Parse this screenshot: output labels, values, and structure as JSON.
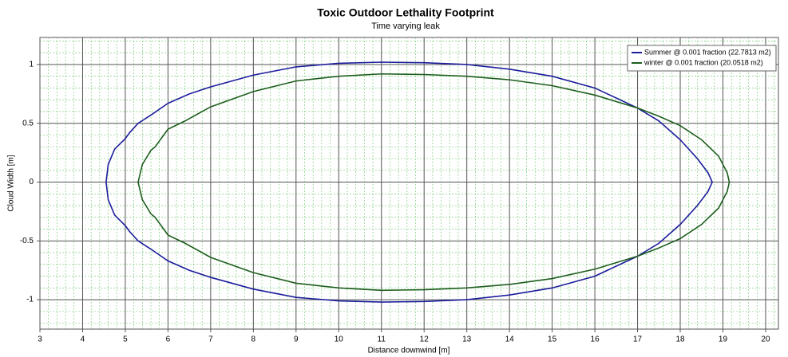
{
  "chart_data": {
    "type": "line",
    "title": "Toxic Outdoor Lethality Footprint",
    "subtitle": "Time varying leak",
    "xlabel": "Distance downwind [m]",
    "ylabel": "Cloud Width [m]",
    "xlim": [
      3,
      20.3
    ],
    "ylim": [
      -1.25,
      1.23
    ],
    "xticks": [
      3,
      4,
      5,
      6,
      7,
      8,
      9,
      10,
      11,
      12,
      13,
      14,
      15,
      16,
      17,
      18,
      19,
      20
    ],
    "yticks": [
      -1,
      -0.5,
      0,
      0.5,
      1
    ],
    "grid": true,
    "minor_grid": true,
    "legend": "upper right",
    "series": [
      {
        "name": "Summer @ 0.001 fraction (22.7813 m2)",
        "color": "#1c1c9c",
        "x": [
          4.55,
          4.6,
          4.75,
          5.0,
          5.1,
          5.3,
          5.6,
          6,
          6.5,
          7,
          8,
          9,
          10,
          11,
          12,
          13,
          14,
          15,
          16,
          17,
          17.5,
          18,
          18.4,
          18.65,
          18.75,
          18.65,
          18.4,
          18,
          17.5,
          17,
          16,
          15,
          14,
          13,
          12,
          11,
          10,
          9,
          8,
          7,
          6.5,
          6,
          5.6,
          5.3,
          5.1,
          5.0,
          4.75,
          4.6,
          4.55
        ],
        "values": [
          0,
          0.15,
          0.28,
          0.37,
          0.42,
          0.5,
          0.57,
          0.67,
          0.75,
          0.81,
          0.91,
          0.98,
          1.01,
          1.02,
          1.015,
          1.0,
          0.96,
          0.9,
          0.8,
          0.63,
          0.52,
          0.36,
          0.2,
          0.08,
          0,
          -0.08,
          -0.2,
          -0.36,
          -0.52,
          -0.63,
          -0.8,
          -0.9,
          -0.96,
          -1.0,
          -1.015,
          -1.02,
          -1.01,
          -0.98,
          -0.91,
          -0.81,
          -0.75,
          -0.67,
          -0.57,
          -0.5,
          -0.42,
          -0.37,
          -0.28,
          -0.15,
          0
        ]
      },
      {
        "name": "winter @ 0.001 fraction (20.0518 m2)",
        "color": "#1d5e1d",
        "x": [
          5.3,
          5.4,
          5.6,
          5.7,
          6,
          6.4,
          7,
          8,
          9,
          10,
          11,
          12,
          13,
          14,
          15,
          16,
          17,
          17.5,
          18,
          18.5,
          18.9,
          19.1,
          19.15,
          19.1,
          18.9,
          18.5,
          18,
          17.5,
          17,
          16,
          15,
          14,
          13,
          12,
          11,
          10,
          9,
          8,
          7,
          6.4,
          6,
          5.7,
          5.6,
          5.4,
          5.3
        ],
        "values": [
          0,
          0.15,
          0.27,
          0.3,
          0.45,
          0.52,
          0.64,
          0.77,
          0.86,
          0.9,
          0.92,
          0.915,
          0.9,
          0.87,
          0.82,
          0.74,
          0.63,
          0.56,
          0.48,
          0.36,
          0.22,
          0.08,
          0,
          -0.08,
          -0.22,
          -0.36,
          -0.48,
          -0.56,
          -0.63,
          -0.74,
          -0.82,
          -0.87,
          -0.9,
          -0.915,
          -0.92,
          -0.9,
          -0.86,
          -0.77,
          -0.64,
          -0.52,
          -0.45,
          -0.3,
          -0.27,
          -0.15,
          0
        ]
      }
    ]
  }
}
